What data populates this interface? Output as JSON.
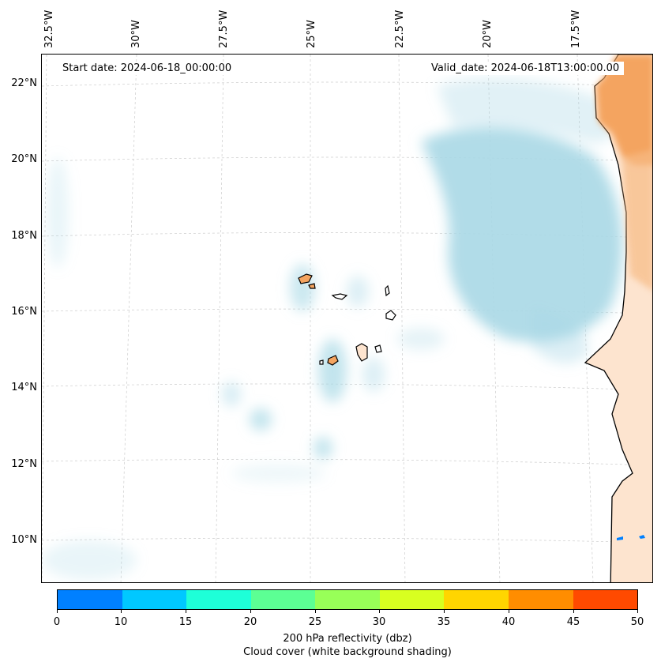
{
  "map": {
    "start_date": "Start date: 2024-06-18_00:00:00",
    "valid_date": "Valid_date: 2024-06-18T13:00:00.00",
    "lat_labels": [
      "22°N",
      "20°N",
      "18°N",
      "16°N",
      "14°N",
      "12°N",
      "10°N"
    ],
    "lon_labels": [
      "32.5°W",
      "30°W",
      "27.5°W",
      "25°W",
      "22.5°W",
      "20°W",
      "17.5°W"
    ],
    "colors": {
      "cloud": "#a8d8e6",
      "land_high": "#f4a460",
      "land_low": "#fde4cf",
      "coastline": "#000000",
      "gridline": "#cccccc"
    }
  },
  "colorbar": {
    "ticks": [
      "0",
      "10",
      "15",
      "20",
      "25",
      "30",
      "35",
      "40",
      "45",
      "50"
    ],
    "colors": [
      "#0080ff",
      "#00c8ff",
      "#1effd8",
      "#5cff94",
      "#98ff58",
      "#d8ff20",
      "#ffd500",
      "#ff8d00",
      "#ff4a00"
    ],
    "title": "200 hPa reflectivity (dbz)",
    "subtitle": "Cloud cover (white background shading)"
  }
}
